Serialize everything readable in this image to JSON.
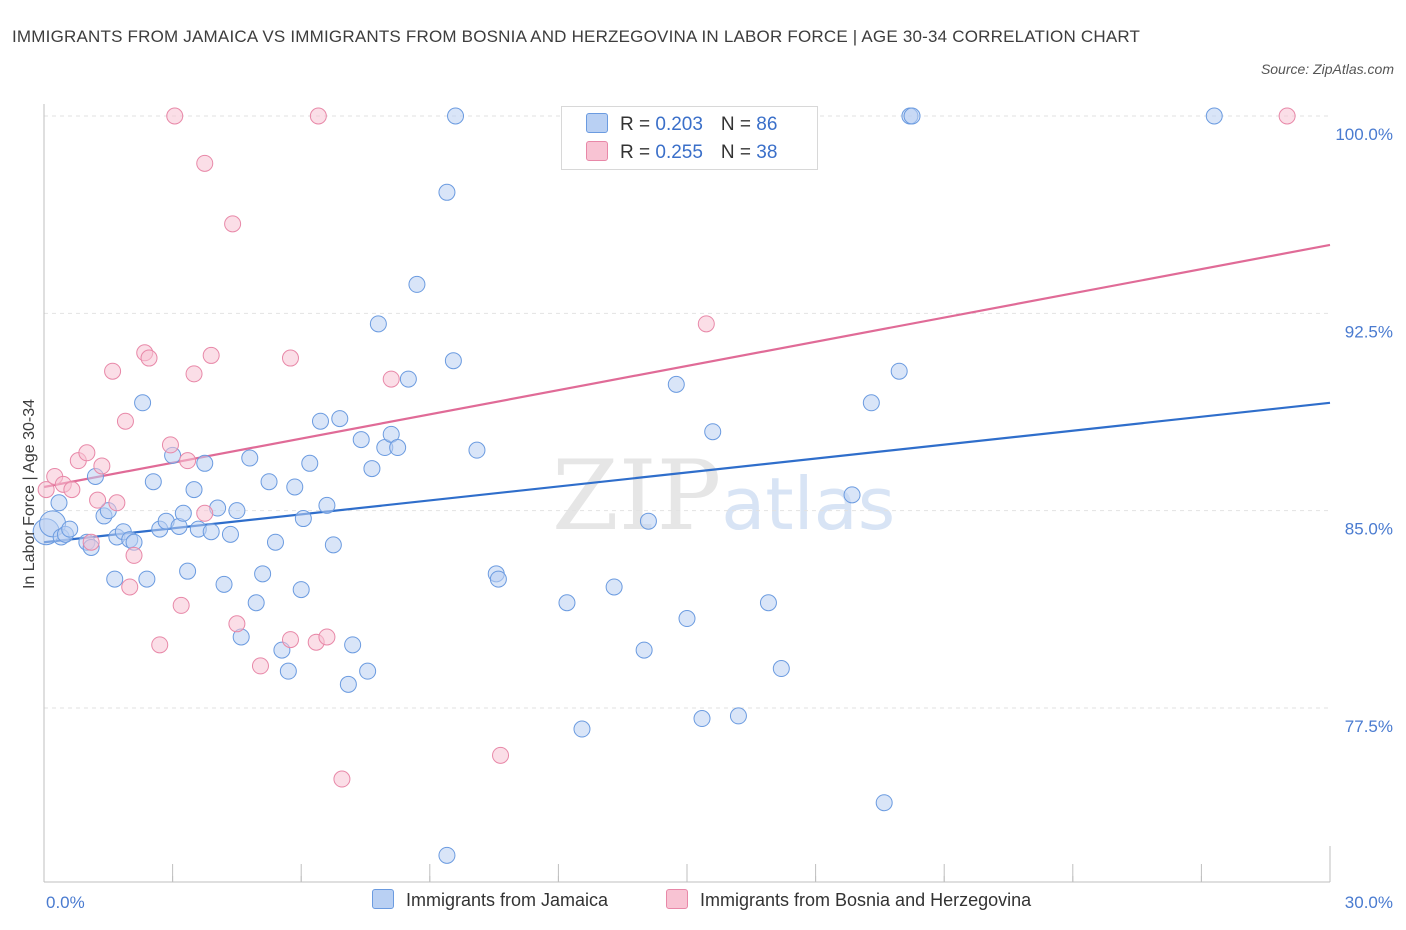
{
  "title": "IMMIGRANTS FROM JAMAICA VS IMMIGRANTS FROM BOSNIA AND HERZEGOVINA IN LABOR FORCE | AGE 30-34 CORRELATION CHART",
  "source": "Source: ZipAtlas.com",
  "watermark": {
    "zip": "ZIP",
    "atlas": "atlas"
  },
  "legend": {
    "rows": [
      {
        "r_label": "R = ",
        "r_value": "0.203",
        "n_label": "N = ",
        "n_value": "86"
      },
      {
        "r_label": "R = ",
        "r_value": "0.255",
        "n_label": "N = ",
        "n_value": "38"
      }
    ]
  },
  "chart_data": {
    "type": "scatter",
    "title": "IMMIGRANTS FROM JAMAICA VS IMMIGRANTS FROM BOSNIA AND HERZEGOVINA IN LABOR FORCE | AGE 30-34 CORRELATION CHART",
    "xlabel": "",
    "ylabel": "In Labor Force | Age 30-34",
    "xlim": [
      0,
      30
    ],
    "ylim": [
      71,
      100.6
    ],
    "x_tick_labels": [
      "0.0%",
      "30.0%"
    ],
    "y_ticks": [
      77.5,
      85.0,
      92.5,
      100.0
    ],
    "y_tick_labels": [
      "77.5%",
      "85.0%",
      "92.5%",
      "100.0%"
    ],
    "grid": true,
    "legend_position": "top-center",
    "series": [
      {
        "name": "Immigrants from Jamaica",
        "color": "#6b9be0",
        "fill": "#b9d0f3",
        "trend": {
          "x": [
            0,
            30
          ],
          "y": [
            83.8,
            89.1
          ]
        },
        "points": [
          [
            0.05,
            84.2
          ],
          [
            0.2,
            84.5
          ],
          [
            0.35,
            85.3
          ],
          [
            0.4,
            84.0
          ],
          [
            0.5,
            84.1
          ],
          [
            0.6,
            84.3
          ],
          [
            1.0,
            83.8
          ],
          [
            1.1,
            83.6
          ],
          [
            1.2,
            86.3
          ],
          [
            1.4,
            84.8
          ],
          [
            1.5,
            85.0
          ],
          [
            1.65,
            82.4
          ],
          [
            1.7,
            84.0
          ],
          [
            1.85,
            84.2
          ],
          [
            2.0,
            83.9
          ],
          [
            2.1,
            83.8
          ],
          [
            2.3,
            89.1
          ],
          [
            2.4,
            82.4
          ],
          [
            2.55,
            86.1
          ],
          [
            2.7,
            84.3
          ],
          [
            2.85,
            84.6
          ],
          [
            3.0,
            87.1
          ],
          [
            3.15,
            84.4
          ],
          [
            3.25,
            84.9
          ],
          [
            3.35,
            82.7
          ],
          [
            3.5,
            85.8
          ],
          [
            3.6,
            84.3
          ],
          [
            3.75,
            86.8
          ],
          [
            3.9,
            84.2
          ],
          [
            4.05,
            85.1
          ],
          [
            4.2,
            82.2
          ],
          [
            4.35,
            84.1
          ],
          [
            4.5,
            85.0
          ],
          [
            4.6,
            80.2
          ],
          [
            4.8,
            87.0
          ],
          [
            4.95,
            81.5
          ],
          [
            5.1,
            82.6
          ],
          [
            5.25,
            86.1
          ],
          [
            5.4,
            83.8
          ],
          [
            5.55,
            79.7
          ],
          [
            5.7,
            78.9
          ],
          [
            5.85,
            85.9
          ],
          [
            6.0,
            82.0
          ],
          [
            6.05,
            84.7
          ],
          [
            6.2,
            86.8
          ],
          [
            6.45,
            88.4
          ],
          [
            6.6,
            85.2
          ],
          [
            6.75,
            83.7
          ],
          [
            6.9,
            88.5
          ],
          [
            7.1,
            78.4
          ],
          [
            7.2,
            79.9
          ],
          [
            7.4,
            87.7
          ],
          [
            7.55,
            78.9
          ],
          [
            7.65,
            86.6
          ],
          [
            7.8,
            92.1
          ],
          [
            7.95,
            87.4
          ],
          [
            8.1,
            87.9
          ],
          [
            8.25,
            87.4
          ],
          [
            8.5,
            90.0
          ],
          [
            8.7,
            93.6
          ],
          [
            9.4,
            97.1
          ],
          [
            9.4,
            71.9
          ],
          [
            9.55,
            90.7
          ],
          [
            9.6,
            100.0
          ],
          [
            10.1,
            87.3
          ],
          [
            10.55,
            82.6
          ],
          [
            10.6,
            82.4
          ],
          [
            12.2,
            81.5
          ],
          [
            12.55,
            76.7
          ],
          [
            13.3,
            82.1
          ],
          [
            14.0,
            79.7
          ],
          [
            14.1,
            84.6
          ],
          [
            14.75,
            89.8
          ],
          [
            15.0,
            80.9
          ],
          [
            15.35,
            77.1
          ],
          [
            15.6,
            88.0
          ],
          [
            16.2,
            77.2
          ],
          [
            16.9,
            81.5
          ],
          [
            17.2,
            79.0
          ],
          [
            18.85,
            85.6
          ],
          [
            19.3,
            89.1
          ],
          [
            19.6,
            73.9
          ],
          [
            19.95,
            90.3
          ],
          [
            20.2,
            100.0
          ],
          [
            20.25,
            100.0
          ],
          [
            27.3,
            100.0
          ]
        ]
      },
      {
        "name": "Immigrants from Bosnia and Herzegovina",
        "color": "#e888a8",
        "fill": "#f8c3d3",
        "trend": {
          "x": [
            0,
            30
          ],
          "y": [
            85.9,
            95.1
          ]
        },
        "points": [
          [
            0.05,
            85.8
          ],
          [
            0.25,
            86.3
          ],
          [
            0.45,
            86.0
          ],
          [
            0.65,
            85.8
          ],
          [
            0.8,
            86.9
          ],
          [
            1.0,
            87.2
          ],
          [
            1.1,
            83.8
          ],
          [
            1.25,
            85.4
          ],
          [
            1.35,
            86.7
          ],
          [
            1.6,
            90.3
          ],
          [
            1.7,
            85.3
          ],
          [
            1.9,
            88.4
          ],
          [
            2.0,
            82.1
          ],
          [
            2.1,
            83.3
          ],
          [
            2.35,
            91.0
          ],
          [
            2.45,
            90.8
          ],
          [
            2.7,
            79.9
          ],
          [
            2.95,
            87.5
          ],
          [
            3.05,
            100.0
          ],
          [
            3.2,
            81.4
          ],
          [
            3.35,
            86.9
          ],
          [
            3.5,
            90.2
          ],
          [
            3.75,
            84.9
          ],
          [
            3.75,
            98.2
          ],
          [
            3.9,
            90.9
          ],
          [
            4.4,
            95.9
          ],
          [
            4.5,
            80.7
          ],
          [
            5.05,
            79.1
          ],
          [
            5.75,
            80.1
          ],
          [
            5.75,
            90.8
          ],
          [
            6.35,
            80.0
          ],
          [
            6.4,
            100.0
          ],
          [
            6.6,
            80.2
          ],
          [
            6.95,
            74.8
          ],
          [
            8.1,
            90.0
          ],
          [
            10.65,
            75.7
          ],
          [
            15.45,
            92.1
          ],
          [
            29.0,
            100.0
          ]
        ]
      }
    ]
  },
  "bottom_legend": [
    {
      "label": "Immigrants from Jamaica"
    },
    {
      "label": "Immigrants from Bosnia and Herzegovina"
    }
  ]
}
